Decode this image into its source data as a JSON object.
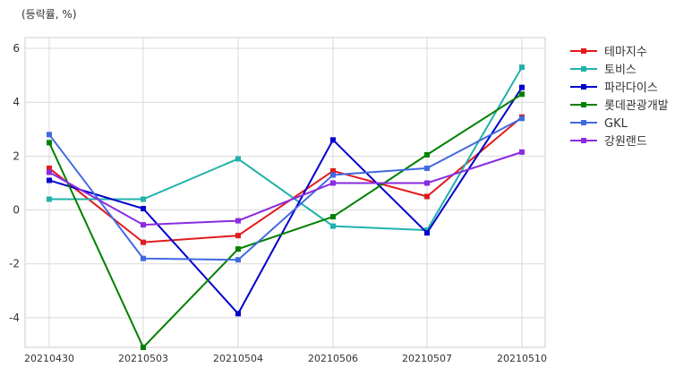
{
  "chart_data": {
    "type": "line",
    "unit_label": "(등락률, %)",
    "categories": [
      "20210430",
      "20210503",
      "20210504",
      "20210506",
      "20210507",
      "20210510"
    ],
    "ylim": [
      -5.1,
      6.4
    ],
    "yticks": [
      -4,
      -2,
      0,
      2,
      4,
      6
    ],
    "ytick_labels": [
      "-4",
      "-2",
      "0",
      "2",
      "4",
      "6"
    ],
    "grid": true,
    "legend_position": "right",
    "series": [
      {
        "name": "테마지수",
        "color": "#e31a1c",
        "values": [
          1.55,
          -1.2,
          -0.95,
          1.45,
          0.5,
          3.45
        ]
      },
      {
        "name": "토비스",
        "color": "#20b2aa",
        "values": [
          0.4,
          0.4,
          1.9,
          -0.6,
          -0.75,
          5.3
        ]
      },
      {
        "name": "파라다이스",
        "color": "#0000cd",
        "values": [
          1.1,
          0.05,
          -3.85,
          2.6,
          -0.85,
          4.55
        ]
      },
      {
        "name": "롯데관광개발",
        "color": "#008000",
        "values": [
          2.5,
          -5.1,
          -1.45,
          -0.25,
          2.05,
          4.3
        ]
      },
      {
        "name": "GKL",
        "color": "#4169e1",
        "values": [
          2.8,
          -1.8,
          -1.85,
          1.3,
          1.55,
          3.4
        ]
      },
      {
        "name": "강원랜드",
        "color": "#8a2be2",
        "values": [
          1.4,
          -0.55,
          -0.4,
          1.0,
          1.0,
          2.15
        ]
      }
    ]
  }
}
